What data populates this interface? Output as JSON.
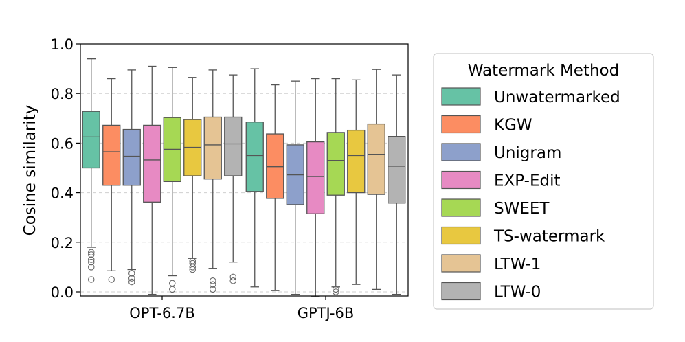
{
  "chart_data": {
    "type": "boxplot",
    "title": "",
    "xlabel": "",
    "ylabel": "Cosine similarity",
    "ylim": [
      -0.02,
      1.0
    ],
    "yticks": [
      "0.0",
      "0.2",
      "0.4",
      "0.6",
      "0.8",
      "1.0"
    ],
    "grid": "horizontal dashed",
    "categories": [
      "OPT-6.7B",
      "GPTJ-6B"
    ],
    "legend": {
      "title": "Watermark Method",
      "position": "right"
    },
    "series": [
      {
        "name": "Unwatermarked",
        "color": "#66c2a5",
        "stats": [
          {
            "whisker_low": 0.18,
            "q1": 0.5,
            "median": 0.625,
            "q3": 0.728,
            "whisker_high": 0.94,
            "outliers": [
              0.05,
              0.1,
              0.12,
              0.13,
              0.15,
              0.16
            ]
          },
          {
            "whisker_low": 0.02,
            "q1": 0.405,
            "median": 0.55,
            "q3": 0.685,
            "whisker_high": 0.9,
            "outliers": []
          }
        ]
      },
      {
        "name": "KGW",
        "color": "#fc8d62",
        "stats": [
          {
            "whisker_low": 0.085,
            "q1": 0.43,
            "median": 0.565,
            "q3": 0.672,
            "whisker_high": 0.86,
            "outliers": [
              0.05
            ]
          },
          {
            "whisker_low": 0.005,
            "q1": 0.377,
            "median": 0.505,
            "q3": 0.637,
            "whisker_high": 0.835,
            "outliers": []
          }
        ]
      },
      {
        "name": "Unigram",
        "color": "#8da0cb",
        "stats": [
          {
            "whisker_low": 0.09,
            "q1": 0.43,
            "median": 0.547,
            "q3": 0.655,
            "whisker_high": 0.895,
            "outliers": [
              0.04,
              0.055,
              0.075
            ]
          },
          {
            "whisker_low": -0.01,
            "q1": 0.352,
            "median": 0.472,
            "q3": 0.593,
            "whisker_high": 0.85,
            "outliers": []
          }
        ]
      },
      {
        "name": "EXP-Edit",
        "color": "#e78ac3",
        "stats": [
          {
            "whisker_low": -0.01,
            "q1": 0.362,
            "median": 0.532,
            "q3": 0.672,
            "whisker_high": 0.91,
            "outliers": []
          },
          {
            "whisker_low": -0.02,
            "q1": 0.315,
            "median": 0.465,
            "q3": 0.605,
            "whisker_high": 0.86,
            "outliers": []
          }
        ]
      },
      {
        "name": "SWEET",
        "color": "#a6d854",
        "stats": [
          {
            "whisker_low": 0.065,
            "q1": 0.445,
            "median": 0.575,
            "q3": 0.703,
            "whisker_high": 0.905,
            "outliers": [
              0.01,
              0.035
            ]
          },
          {
            "whisker_low": 0.02,
            "q1": 0.39,
            "median": 0.53,
            "q3": 0.643,
            "whisker_high": 0.86,
            "outliers": [
              0.0,
              0.01
            ]
          }
        ]
      },
      {
        "name": "TS-watermark",
        "color": "#e8c840",
        "stats": [
          {
            "whisker_low": 0.135,
            "q1": 0.468,
            "median": 0.583,
            "q3": 0.695,
            "whisker_high": 0.865,
            "outliers": [
              0.09,
              0.1,
              0.115,
              0.125
            ]
          },
          {
            "whisker_low": 0.03,
            "q1": 0.4,
            "median": 0.55,
            "q3": 0.652,
            "whisker_high": 0.855,
            "outliers": []
          }
        ]
      },
      {
        "name": "LTW-1",
        "color": "#e5c494",
        "stats": [
          {
            "whisker_low": 0.095,
            "q1": 0.455,
            "median": 0.593,
            "q3": 0.705,
            "whisker_high": 0.895,
            "outliers": [
              0.01,
              0.03,
              0.045
            ]
          },
          {
            "whisker_low": 0.01,
            "q1": 0.393,
            "median": 0.555,
            "q3": 0.677,
            "whisker_high": 0.897,
            "outliers": []
          }
        ]
      },
      {
        "name": "LTW-0",
        "color": "#b3b3b3",
        "stats": [
          {
            "whisker_low": 0.12,
            "q1": 0.468,
            "median": 0.597,
            "q3": 0.705,
            "whisker_high": 0.875,
            "outliers": [
              0.045,
              0.06
            ]
          },
          {
            "whisker_low": -0.01,
            "q1": 0.358,
            "median": 0.507,
            "q3": 0.627,
            "whisker_high": 0.875,
            "outliers": []
          }
        ]
      }
    ]
  }
}
